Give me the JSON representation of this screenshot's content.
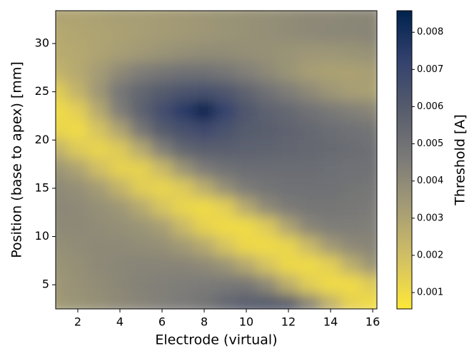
{
  "chart_data": {
    "type": "heatmap",
    "xlabel": "Electrode (virtual)",
    "ylabel": "Position (base to apex) [mm]",
    "colorbar_label": "Threshold [A]",
    "x": [
      1,
      2,
      3,
      4,
      5,
      6,
      7,
      8,
      9,
      10,
      11,
      12,
      13,
      14,
      15,
      16
    ],
    "y": [
      33,
      31,
      29,
      27,
      25,
      23,
      21,
      19,
      17,
      15,
      13,
      11,
      9,
      7,
      5,
      3
    ],
    "z": [
      [
        0.003,
        0.003,
        0.0031,
        0.0032,
        0.0032,
        0.0033,
        0.0034,
        0.0035,
        0.0036,
        0.0037,
        0.0038,
        0.0039,
        0.004,
        0.004,
        0.0041,
        0.0041
      ],
      [
        0.0028,
        0.0029,
        0.003,
        0.0031,
        0.0032,
        0.0033,
        0.0034,
        0.0035,
        0.0036,
        0.0037,
        0.0038,
        0.0039,
        0.004,
        0.0041,
        0.0041,
        0.0042
      ],
      [
        0.0027,
        0.0028,
        0.003,
        0.0032,
        0.0034,
        0.0036,
        0.0038,
        0.0039,
        0.0039,
        0.0038,
        0.0037,
        0.0036,
        0.0035,
        0.0035,
        0.0036,
        0.0037
      ],
      [
        0.0024,
        0.0028,
        0.0033,
        0.004,
        0.0045,
        0.0048,
        0.005,
        0.005,
        0.0048,
        0.0044,
        0.004,
        0.0036,
        0.0032,
        0.0031,
        0.0031,
        0.0032
      ],
      [
        0.0015,
        0.0024,
        0.0035,
        0.0048,
        0.0055,
        0.006,
        0.0063,
        0.0065,
        0.0062,
        0.0056,
        0.005,
        0.0045,
        0.004,
        0.0035,
        0.0032,
        0.0031
      ],
      [
        0.001,
        0.0014,
        0.0028,
        0.0045,
        0.0057,
        0.0066,
        0.0075,
        0.0085,
        0.0072,
        0.0062,
        0.0057,
        0.0054,
        0.005,
        0.0047,
        0.0044,
        0.0042
      ],
      [
        0.0012,
        0.001,
        0.0018,
        0.003,
        0.0048,
        0.006,
        0.0065,
        0.0068,
        0.0064,
        0.006,
        0.0058,
        0.0056,
        0.0054,
        0.0052,
        0.005,
        0.0049
      ],
      [
        0.0025,
        0.0016,
        0.0012,
        0.0016,
        0.0028,
        0.0044,
        0.0055,
        0.0058,
        0.0058,
        0.0057,
        0.0056,
        0.0055,
        0.0054,
        0.0053,
        0.0052,
        0.0051
      ],
      [
        0.0036,
        0.003,
        0.002,
        0.0013,
        0.0013,
        0.0022,
        0.0036,
        0.0046,
        0.005,
        0.0052,
        0.0052,
        0.0052,
        0.0052,
        0.0051,
        0.005,
        0.005
      ],
      [
        0.004,
        0.0038,
        0.0033,
        0.0024,
        0.0015,
        0.0012,
        0.0016,
        0.0026,
        0.0038,
        0.0046,
        0.0049,
        0.005,
        0.005,
        0.005,
        0.0049,
        0.0048
      ],
      [
        0.0041,
        0.004,
        0.0038,
        0.0035,
        0.0028,
        0.0018,
        0.0012,
        0.001,
        0.0014,
        0.0028,
        0.004,
        0.0046,
        0.0048,
        0.0048,
        0.0047,
        0.0046
      ],
      [
        0.004,
        0.004,
        0.0039,
        0.0038,
        0.0036,
        0.0032,
        0.0022,
        0.0013,
        0.001,
        0.001,
        0.0016,
        0.003,
        0.0042,
        0.0045,
        0.0045,
        0.0044
      ],
      [
        0.0038,
        0.0039,
        0.004,
        0.004,
        0.0039,
        0.0038,
        0.0034,
        0.0028,
        0.0018,
        0.0011,
        0.001,
        0.0012,
        0.0022,
        0.0034,
        0.004,
        0.0042
      ],
      [
        0.0036,
        0.0038,
        0.004,
        0.0041,
        0.0042,
        0.0042,
        0.0042,
        0.004,
        0.0036,
        0.0028,
        0.0018,
        0.0011,
        0.001,
        0.0014,
        0.0026,
        0.0036
      ],
      [
        0.0035,
        0.0037,
        0.0039,
        0.0041,
        0.0043,
        0.0044,
        0.0045,
        0.0046,
        0.0047,
        0.0048,
        0.004,
        0.0026,
        0.0015,
        0.001,
        0.001,
        0.0016
      ],
      [
        0.0034,
        0.0036,
        0.0038,
        0.004,
        0.0042,
        0.0044,
        0.0046,
        0.0049,
        0.0054,
        0.0058,
        0.006,
        0.0058,
        0.0042,
        0.0025,
        0.0013,
        0.001
      ]
    ],
    "xlim": [
      0.95,
      16.2
    ],
    "ylim": [
      2.5,
      33.4
    ],
    "xticks": [
      2,
      4,
      6,
      8,
      10,
      12,
      14,
      16
    ],
    "yticks": [
      5,
      10,
      15,
      20,
      25,
      30
    ],
    "clim": [
      0.00056,
      0.00858
    ],
    "cticks": [
      0.001,
      0.002,
      0.003,
      0.004,
      0.005,
      0.006,
      0.007,
      0.008
    ],
    "colors": [
      "#fee838",
      "#d3c164",
      "#a69d75",
      "#7c7b78",
      "#575d6d",
      "#33416e",
      "#00224e"
    ]
  }
}
